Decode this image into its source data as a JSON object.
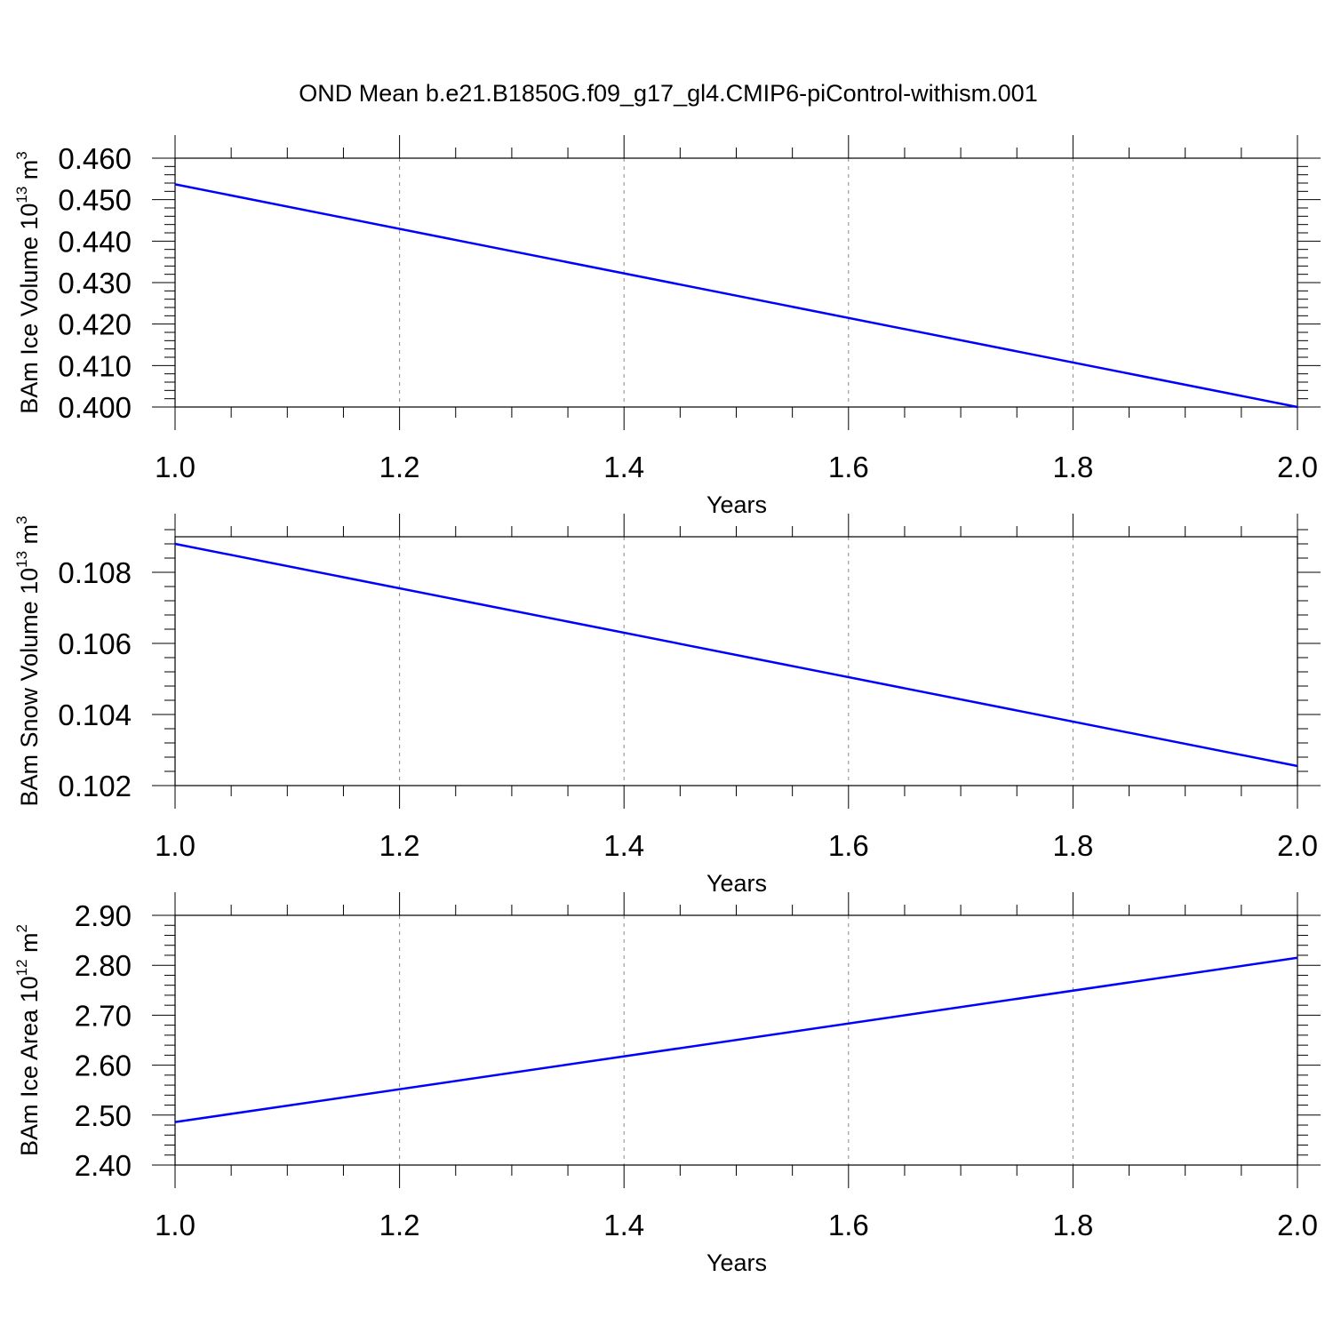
{
  "figure": {
    "title": "OND Mean b.e21.B1850G.f09_g17_gl4.CMIP6-piControl-withism.001"
  },
  "chart_data": [
    {
      "type": "line",
      "title": "",
      "xlabel": "Years",
      "ylabel": {
        "text": "BAm Ice Volume 10",
        "exp": "13",
        "unit": " m",
        "unit_exp": "3"
      },
      "xlim": [
        1.0,
        2.0
      ],
      "ylim": [
        0.4,
        0.46
      ],
      "x_ticks": [
        "1.0",
        "1.2",
        "1.4",
        "1.6",
        "1.8",
        "2.0"
      ],
      "y_ticks": [
        "0.400",
        "0.410",
        "0.420",
        "0.430",
        "0.440",
        "0.450",
        "0.460"
      ],
      "x_tick_values": [
        1.0,
        1.2,
        1.4,
        1.6,
        1.8,
        2.0
      ],
      "y_tick_values": [
        0.4,
        0.41,
        0.42,
        0.43,
        0.44,
        0.45,
        0.46
      ],
      "y_minor_step": 0.002,
      "grid": "x-dashed",
      "series": [
        {
          "name": "BAm Ice Volume",
          "color": "#0000ff",
          "x": [
            1.0,
            2.0
          ],
          "y": [
            0.4537,
            0.4
          ]
        }
      ]
    },
    {
      "type": "line",
      "title": "",
      "xlabel": "Years",
      "ylabel": {
        "text": "BAm Snow Volume 10",
        "exp": "13",
        "unit": " m",
        "unit_exp": "3"
      },
      "xlim": [
        1.0,
        2.0
      ],
      "ylim": [
        0.102,
        0.109
      ],
      "x_ticks": [
        "1.0",
        "1.2",
        "1.4",
        "1.6",
        "1.8",
        "2.0"
      ],
      "y_ticks": [
        "0.102",
        "0.104",
        "0.106",
        "0.108"
      ],
      "x_tick_values": [
        1.0,
        1.2,
        1.4,
        1.6,
        1.8,
        2.0
      ],
      "y_tick_values": [
        0.102,
        0.104,
        0.106,
        0.108
      ],
      "y_minor_step": 0.0004,
      "grid": "x-dashed",
      "series": [
        {
          "name": "BAm Snow Volume",
          "color": "#0000ff",
          "x": [
            1.0,
            2.0
          ],
          "y": [
            0.1088,
            0.10255
          ]
        }
      ]
    },
    {
      "type": "line",
      "title": "",
      "xlabel": "Years",
      "ylabel": {
        "text": "BAm Ice Area 10",
        "exp": "12",
        "unit": " m",
        "unit_exp": "2"
      },
      "xlim": [
        1.0,
        2.0
      ],
      "ylim": [
        2.4,
        2.9
      ],
      "x_ticks": [
        "1.0",
        "1.2",
        "1.4",
        "1.6",
        "1.8",
        "2.0"
      ],
      "y_ticks": [
        "2.40",
        "2.50",
        "2.60",
        "2.70",
        "2.80",
        "2.90"
      ],
      "x_tick_values": [
        1.0,
        1.2,
        1.4,
        1.6,
        1.8,
        2.0
      ],
      "y_tick_values": [
        2.4,
        2.5,
        2.6,
        2.7,
        2.8,
        2.9
      ],
      "y_minor_step": 0.02,
      "grid": "x-dashed",
      "series": [
        {
          "name": "BAm Ice Area",
          "color": "#0000ff",
          "x": [
            1.0,
            2.0
          ],
          "y": [
            2.486,
            2.815
          ]
        }
      ]
    }
  ]
}
